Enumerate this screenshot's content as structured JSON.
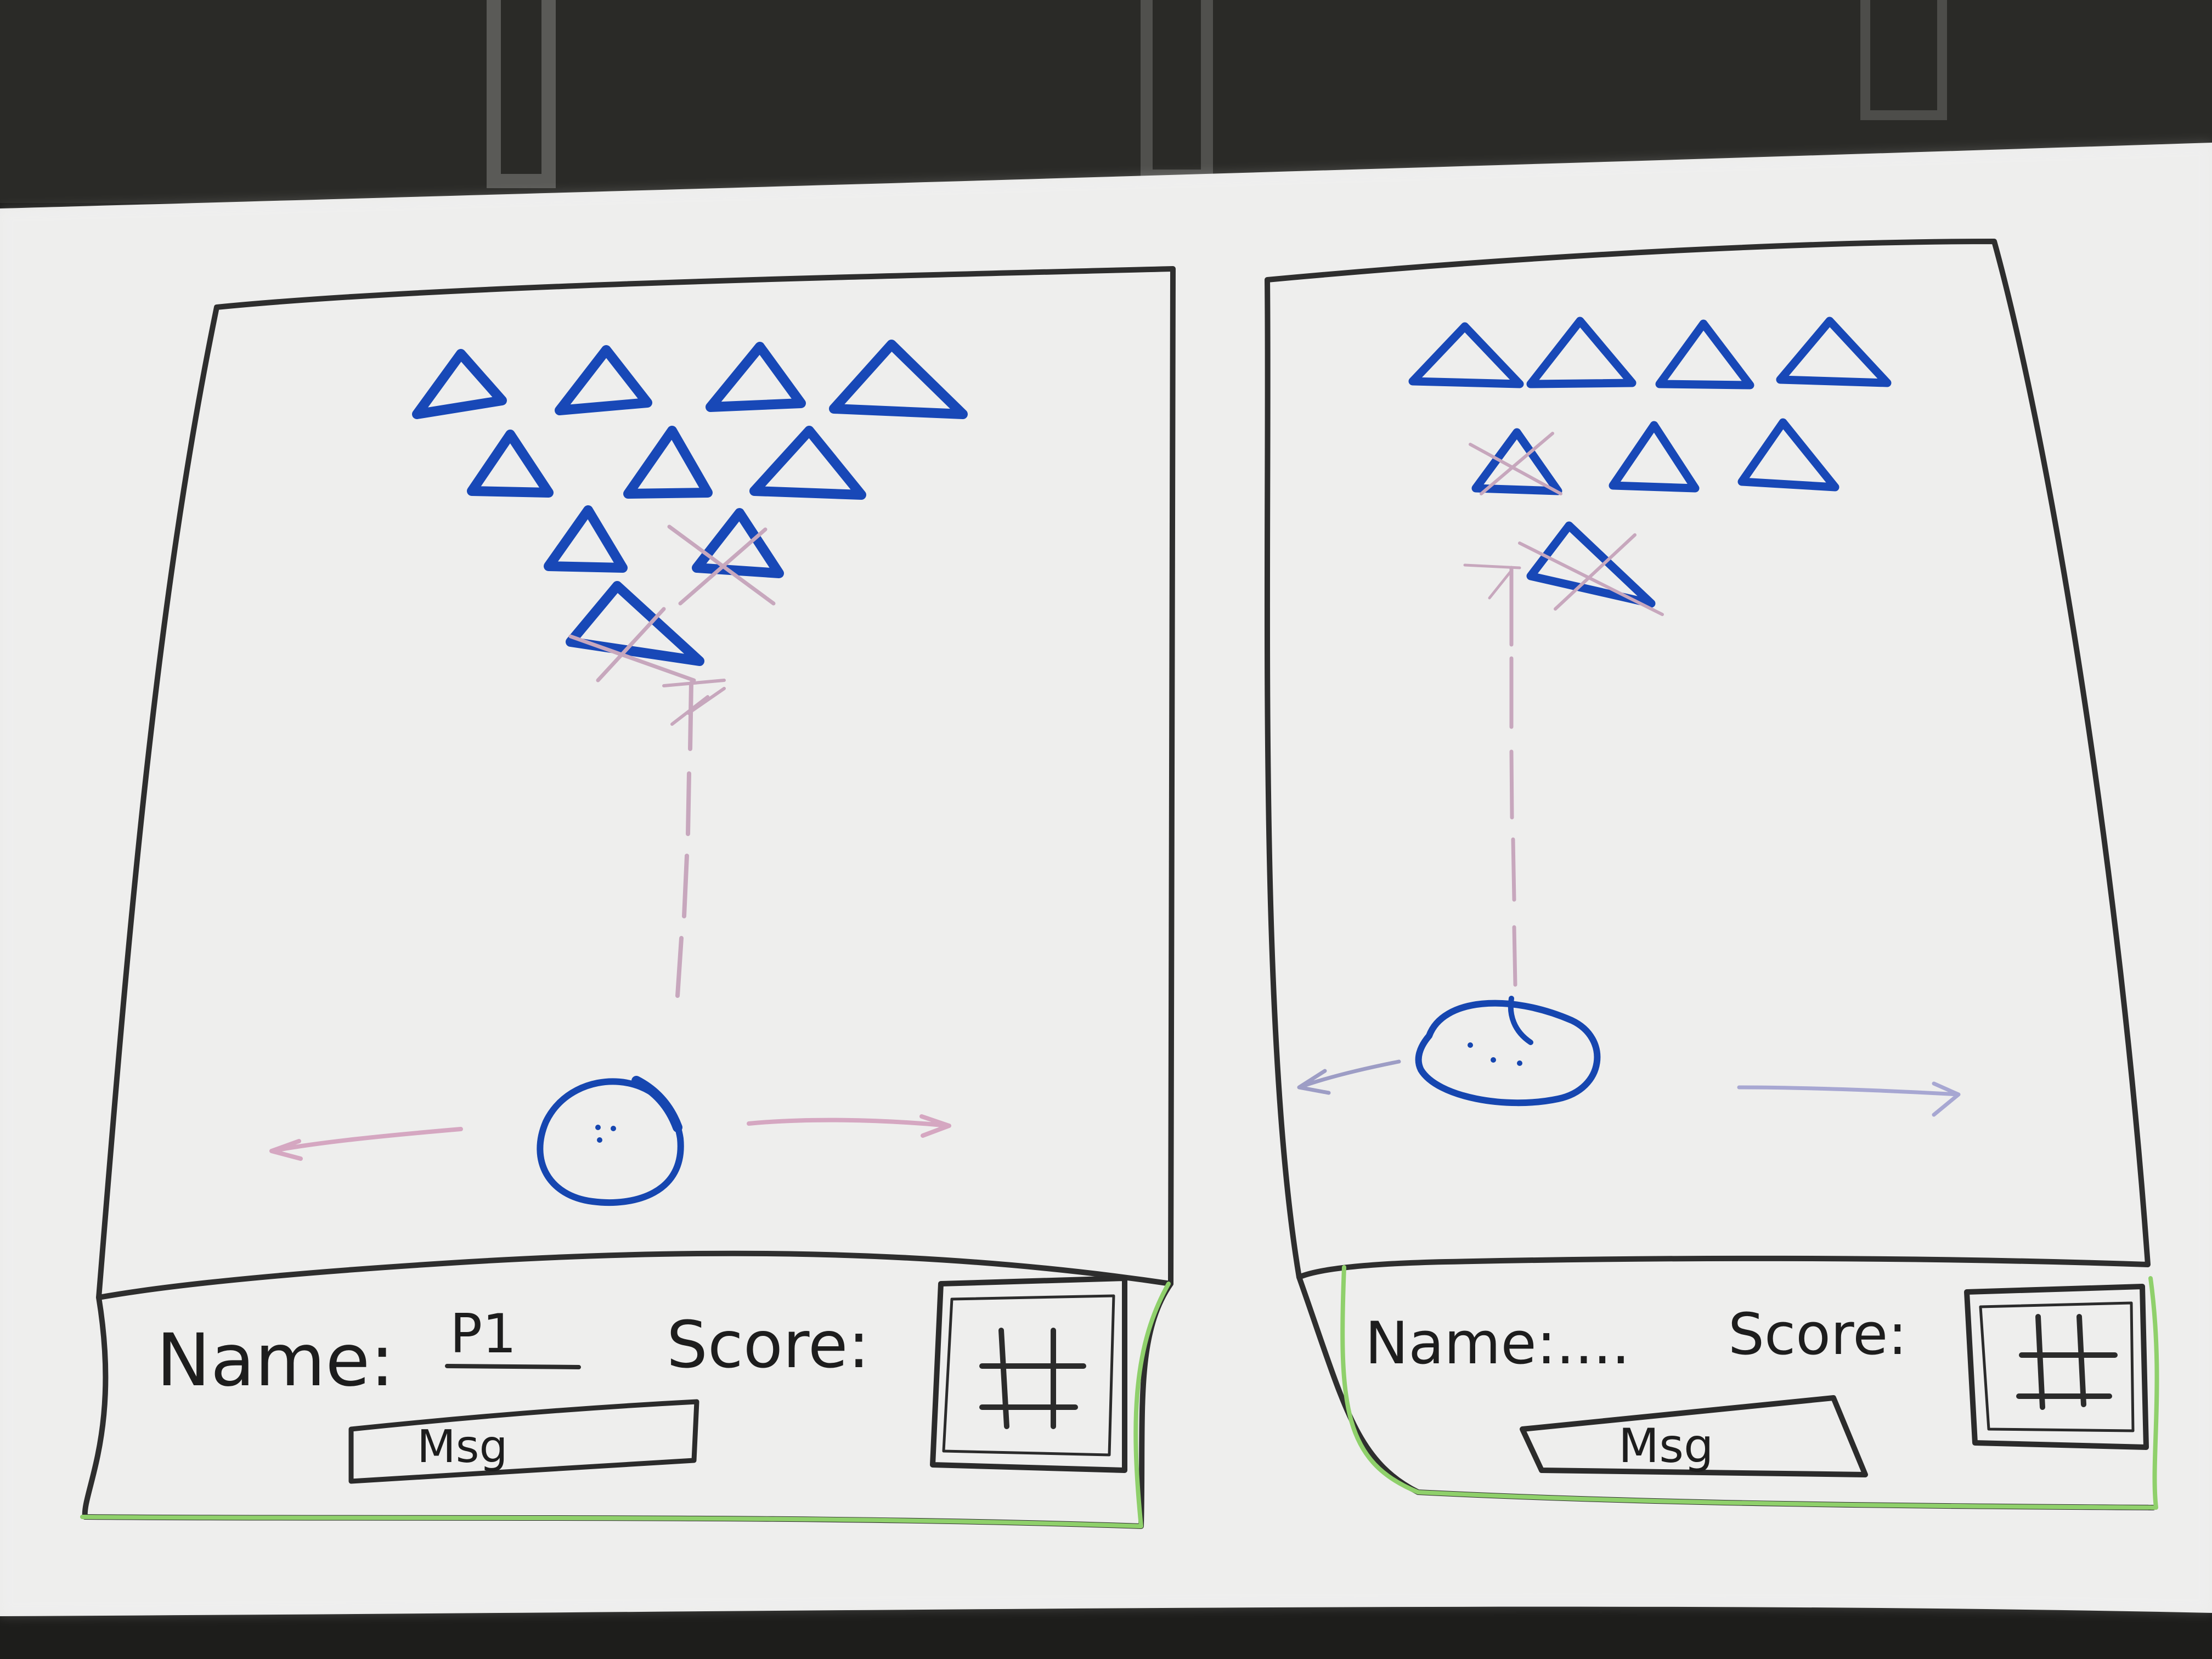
{
  "colors": {
    "board": "#ececeb",
    "frame_ink": "#303030",
    "enemy_ink": "#1848b7",
    "player_ink": "#1646b0",
    "trail_ink": "#c7a7bd",
    "panel_ink": "#8fd06b"
  },
  "icons": {
    "enemy": "triangle-icon",
    "player": "face-icon",
    "grid": "grid-icon",
    "arrow": "arrow-icon"
  },
  "screens": [
    {
      "name_label": "Name:",
      "name_value": "P1",
      "score_label": "Score:",
      "score_value": "",
      "message_label": "Msg"
    },
    {
      "name_label": "Name:....",
      "name_value": "",
      "score_label": "Score:",
      "score_value": "",
      "message_label": "Msg"
    }
  ]
}
